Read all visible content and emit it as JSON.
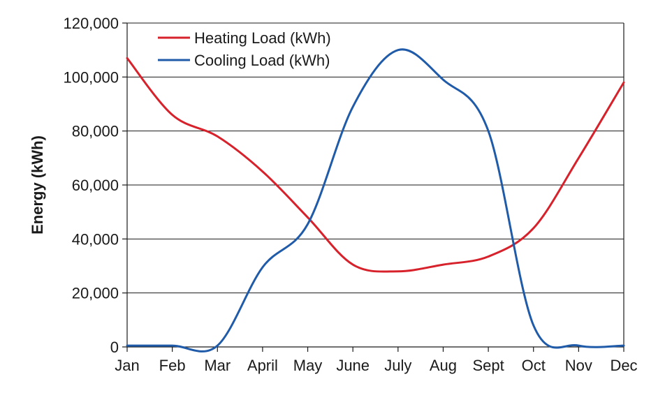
{
  "chart_data": {
    "type": "line",
    "title": "",
    "xlabel": "",
    "ylabel": "Energy (kWh)",
    "categories": [
      "Jan",
      "Feb",
      "Mar",
      "April",
      "May",
      "June",
      "July",
      "Aug",
      "Sept",
      "Oct",
      "Nov",
      "Dec"
    ],
    "ylim": [
      0,
      120000
    ],
    "yticks": [
      0,
      20000,
      40000,
      60000,
      80000,
      100000,
      120000
    ],
    "ytick_labels": [
      "0",
      "20,000",
      "40,000",
      "60,000",
      "80,000",
      "100,000",
      "120,000"
    ],
    "grid": true,
    "legend_position": "top-left",
    "smooth": true,
    "series": [
      {
        "name": "Heating Load (kWh)",
        "color": "#d7212b",
        "values": [
          107000,
          86000,
          78000,
          65000,
          48000,
          30500,
          28000,
          30500,
          33500,
          44000,
          70000,
          98000
        ]
      },
      {
        "name": "Cooling Load (kWh)",
        "color": "#1f5ba9",
        "values": [
          500,
          500,
          500,
          29500,
          45500,
          89000,
          110000,
          99000,
          80000,
          8000,
          500,
          500
        ]
      }
    ]
  }
}
